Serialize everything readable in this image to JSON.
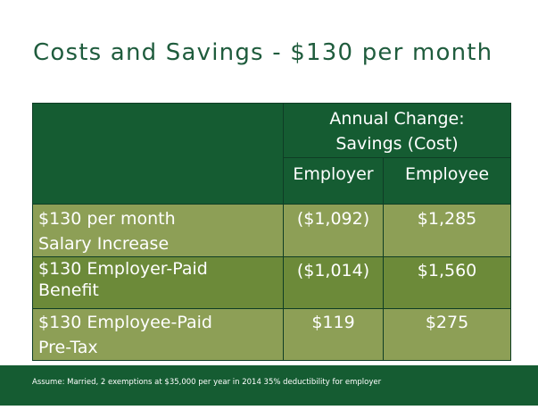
{
  "slide": {
    "title": "Costs and Savings - $130 per month",
    "table": {
      "header_line1": "Annual Change:",
      "header_line2": "Savings (Cost)",
      "col_employer": "Employer",
      "col_employee": "Employee",
      "rows": [
        {
          "label_line1": "$130 per month",
          "label_line2": "Salary Increase",
          "employer": "($1,092)",
          "employee": "$1,285"
        },
        {
          "label_line1": "$130 Employer-Paid",
          "label_line2": "Benefit",
          "employer": "($1,014)",
          "employee": "$1,560"
        },
        {
          "label_line1": "$130 Employee-Paid",
          "label_line2": "Pre-Tax",
          "employer": "$119",
          "employee": "$275"
        }
      ]
    },
    "footnote": "Assume: Married, 2 exemptions at $35,000 per year in 2014 35% deductibility for employer",
    "colors": {
      "title_green": "#1f5c3d",
      "header_green": "#155c32",
      "row_light": "#8d9f56",
      "row_mid": "#6c8a39"
    }
  }
}
